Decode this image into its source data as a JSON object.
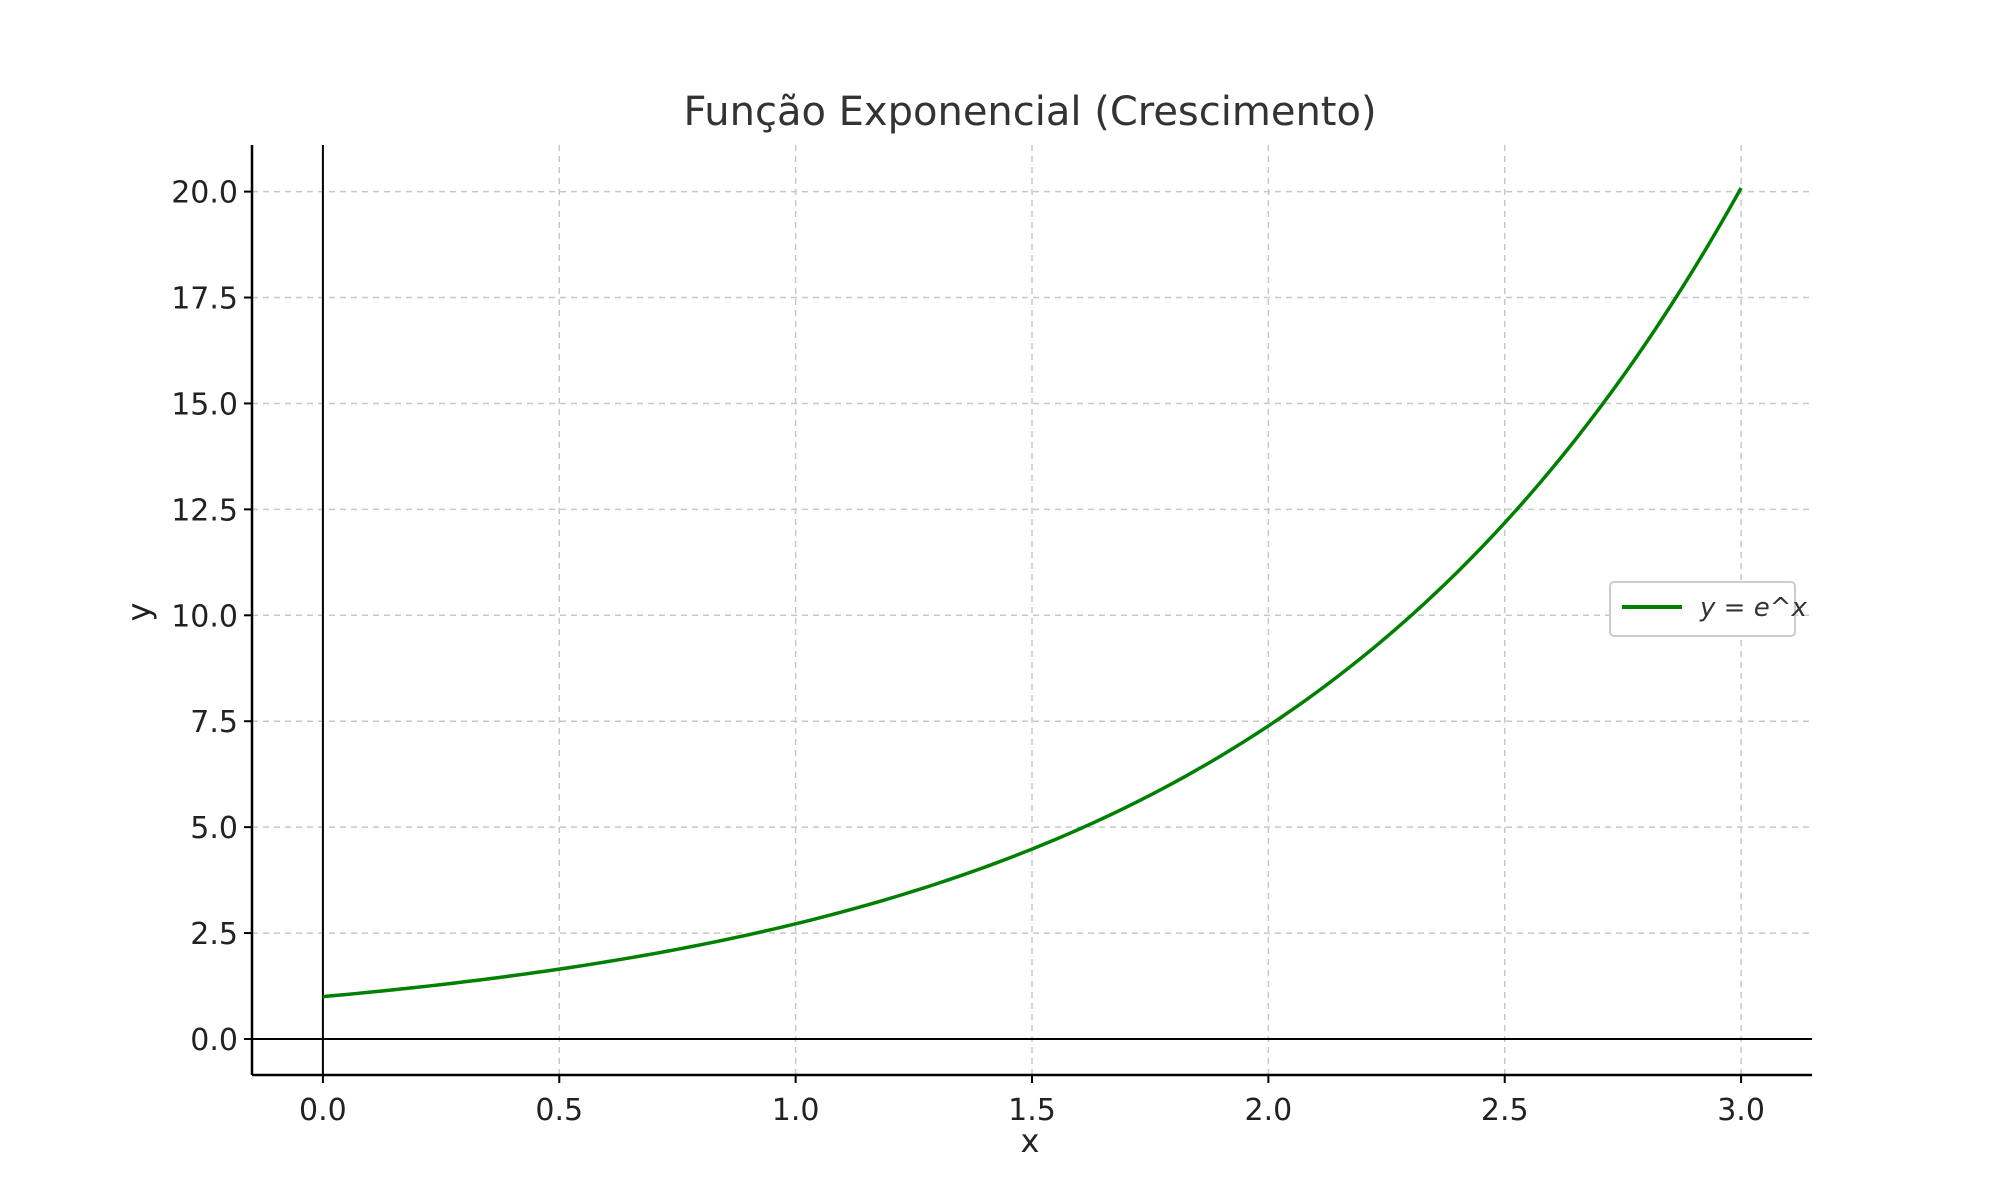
{
  "chart_data": {
    "type": "line",
    "title": "Função Exponencial (Crescimento)",
    "xlabel": "x",
    "ylabel": "y",
    "xlim": [
      -0.15,
      3.15
    ],
    "ylim": [
      -0.85,
      21.1
    ],
    "xticks": [
      0.0,
      0.5,
      1.0,
      1.5,
      2.0,
      2.5,
      3.0
    ],
    "yticks": [
      0.0,
      2.5,
      5.0,
      7.5,
      10.0,
      12.5,
      15.0,
      17.5,
      20.0
    ],
    "xtick_labels": [
      "0.0",
      "0.5",
      "1.0",
      "1.5",
      "2.0",
      "2.5",
      "3.0"
    ],
    "ytick_labels": [
      "0.0",
      "2.5",
      "5.0",
      "7.5",
      "10.0",
      "12.5",
      "15.0",
      "17.5",
      "20.0"
    ],
    "grid": true,
    "legend_position": "right",
    "series": [
      {
        "name": "y = e^x",
        "color": "#008000",
        "x": [
          0.0,
          0.25,
          0.5,
          0.75,
          1.0,
          1.25,
          1.5,
          1.75,
          2.0,
          2.25,
          2.5,
          2.75,
          3.0
        ],
        "y": [
          1.0,
          1.28,
          1.65,
          2.12,
          2.72,
          3.49,
          4.48,
          5.75,
          7.39,
          9.49,
          12.18,
          15.64,
          20.09
        ]
      }
    ],
    "reference_lines": {
      "x0_color": "#000000",
      "y0_color": "#000000"
    }
  }
}
